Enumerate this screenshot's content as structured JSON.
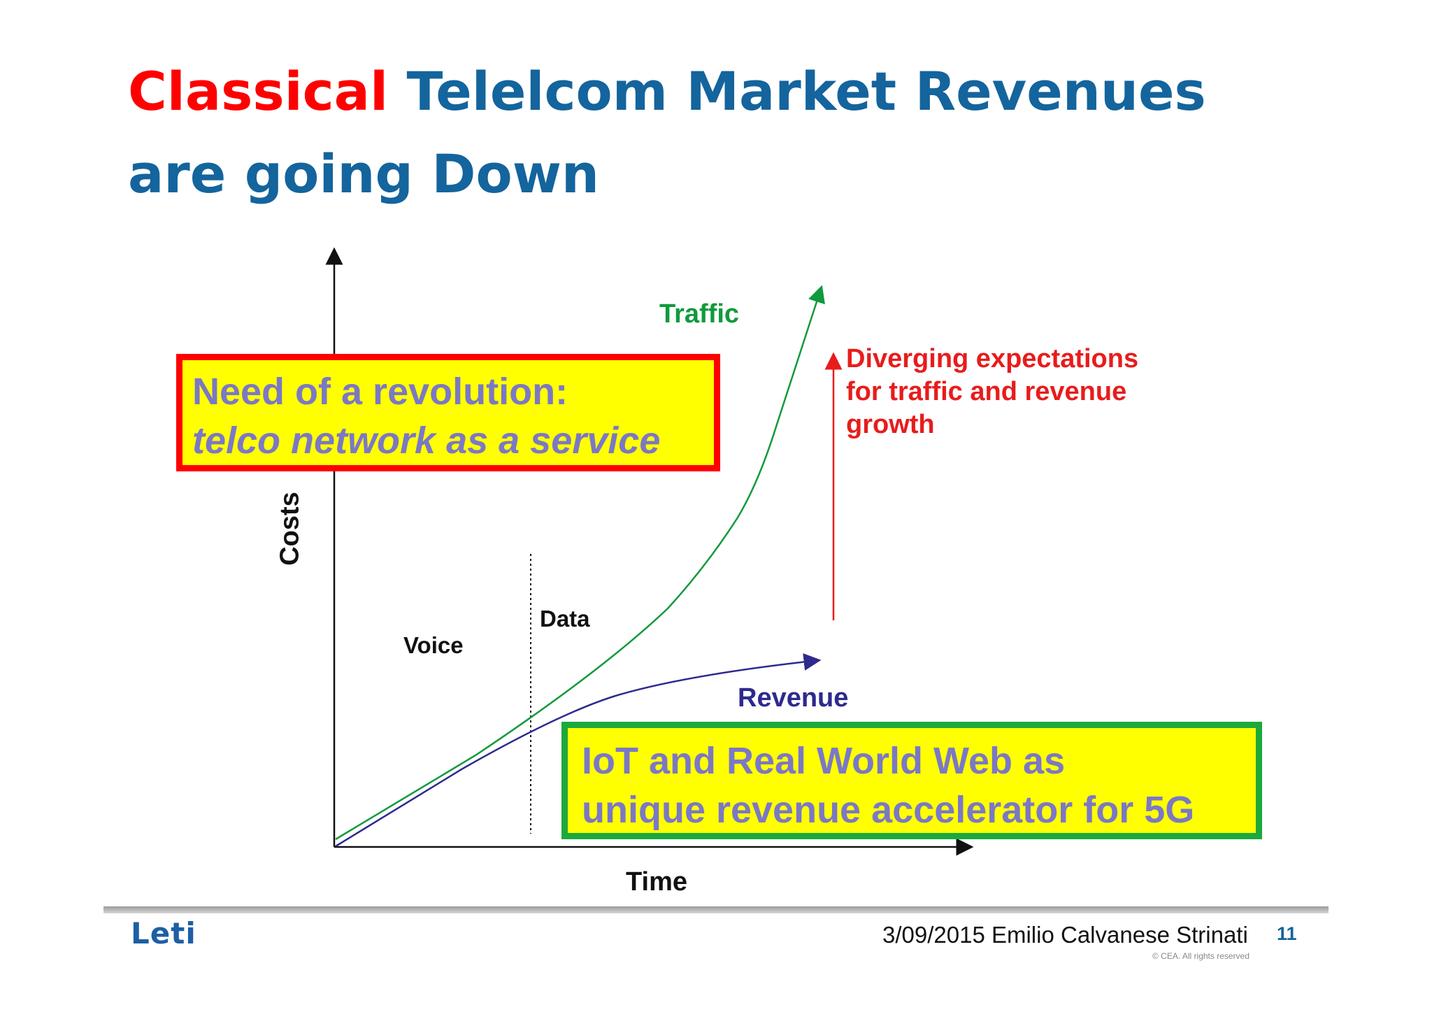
{
  "title": {
    "highlight": "Classical",
    "rest": "Telelcom Market Revenues are going Down"
  },
  "diagram": {
    "traffic_label": "Traffic",
    "revenue_label": "Revenue",
    "voice_label": "Voice",
    "data_label": "Data",
    "x_axis_label": "Time",
    "y_axis_label": "Costs",
    "diverging_text": "Diverging expectations for traffic and revenue growth",
    "colors": {
      "traffic": "#109a3c",
      "revenue": "#2e2a8e",
      "diverging": "#e81c1c"
    }
  },
  "boxes": {
    "revolution": {
      "line1": "Need of a revolution:",
      "line2": "telco network as a service"
    },
    "iot": {
      "line1": "IoT and Real World Web as",
      "line2": "unique revenue accelerator for 5G"
    }
  },
  "footer": {
    "logo": "Leti",
    "text": "3/09/2015 Emilio Calvanese Strinati",
    "page": "11",
    "copyright": "© CEA. All rights reserved"
  }
}
